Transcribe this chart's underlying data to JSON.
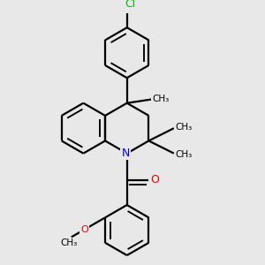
{
  "bg_color": "#e8e8e8",
  "bond_color": "#000000",
  "N_color": "#0000ee",
  "O_color": "#ee0000",
  "Cl_color": "#00bb00",
  "line_width": 1.6,
  "figsize": [
    3.0,
    3.0
  ],
  "dpi": 100,
  "xlim": [
    0.05,
    0.95
  ],
  "ylim": [
    0.05,
    0.97
  ]
}
